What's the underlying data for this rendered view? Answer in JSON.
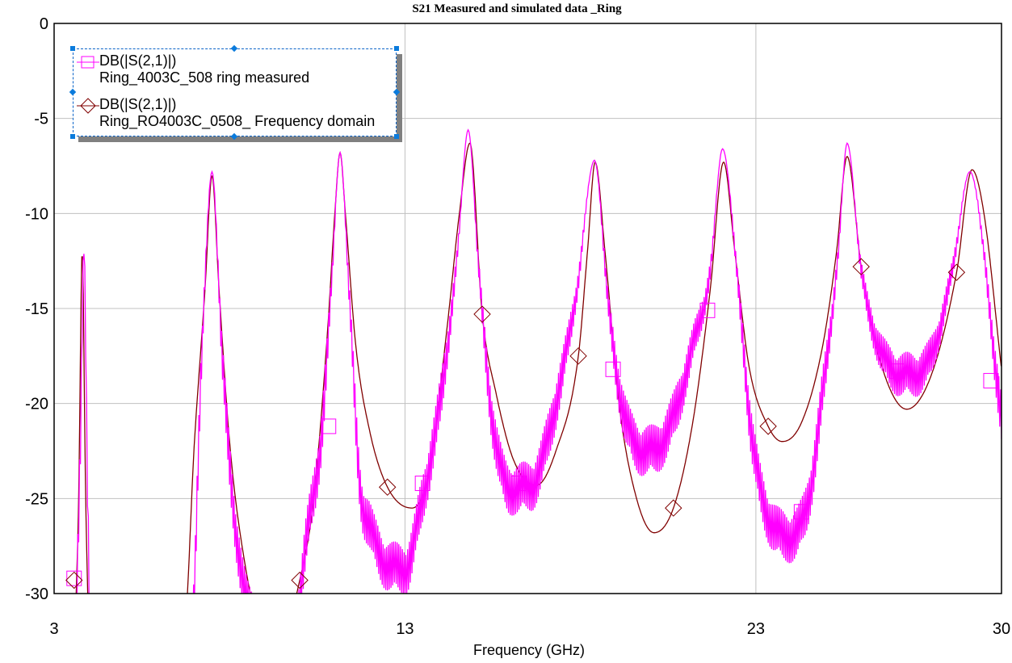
{
  "chart_data": {
    "type": "line",
    "title": "S21 Measured and simulated data _Ring",
    "xlabel": "Frequency (GHz)",
    "ylabel": "",
    "xlim": [
      3,
      30
    ],
    "ylim": [
      -30,
      0
    ],
    "xticks": [
      3,
      13,
      23,
      30
    ],
    "xtick_labels": [
      "3",
      "13",
      "23",
      "30"
    ],
    "yticks": [
      0,
      -5,
      -10,
      -15,
      -20,
      -25,
      -30
    ],
    "ytick_labels": [
      "0",
      "-5",
      "-10",
      "-15",
      "-20",
      "-25",
      "-30"
    ],
    "grid": true,
    "legend_position": "top-left",
    "series": [
      {
        "name": "DB(|S(2,1)|)",
        "source": "Ring_4003C_508 ring measured",
        "color": "#FF00FF",
        "marker": "square",
        "ripple_db": 1.4,
        "x": [
          3.6,
          3.75,
          3.85,
          3.95,
          4.05,
          6.9,
          7.2,
          7.5,
          7.8,
          8.2,
          8.6,
          9.8,
          10.2,
          10.6,
          10.9,
          11.15,
          11.4,
          11.7,
          12.0,
          12.5,
          13.0,
          13.5,
          14.0,
          14.5,
          14.8,
          15.1,
          15.5,
          16.0,
          16.6,
          17.3,
          17.9,
          18.4,
          18.8,
          19.3,
          20.0,
          20.6,
          21.2,
          21.7,
          22.05,
          22.5,
          22.9,
          23.5,
          24.0,
          24.5,
          25.0,
          25.35,
          25.6,
          26.0,
          26.5,
          27.3,
          28.0,
          28.6,
          29.1,
          29.5,
          29.8,
          30.0
        ],
        "y": [
          -34,
          -22,
          -11.7,
          -24,
          -33,
          -32,
          -18,
          -7.8,
          -18,
          -27,
          -31,
          -32,
          -27,
          -22,
          -14,
          -6.8,
          -14,
          -24,
          -26.5,
          -28.5,
          -28.7,
          -25,
          -20,
          -12,
          -5.6,
          -13,
          -21,
          -24.5,
          -24.3,
          -20,
          -14,
          -7.2,
          -15,
          -21,
          -22.5,
          -21,
          -17,
          -13,
          -6.6,
          -14,
          -22,
          -26.5,
          -27,
          -25,
          -18,
          -12,
          -6.3,
          -13,
          -17,
          -18.5,
          -17.5,
          -13,
          -7.8,
          -12,
          -18,
          -20.5
        ],
        "markers_x": [
          3.57,
          10.82,
          13.5,
          16.24,
          18.93,
          21.62,
          24.3,
          27.02,
          29.7
        ],
        "markers_y": [
          -29.2,
          -21.2,
          -24.2,
          -24.2,
          -18.2,
          -15.1,
          -25.7,
          -18.3,
          -18.8
        ]
      },
      {
        "name": "DB(|S(2,1)|)",
        "source": "Ring_RO4003C_0508_ Frequency domain",
        "color": "#800000",
        "marker": "diamond",
        "x": [
          3.55,
          3.7,
          3.8,
          3.9,
          4.05,
          6.7,
          7.0,
          7.3,
          7.5,
          7.7,
          8.0,
          8.4,
          8.8,
          9.7,
          10.0,
          10.4,
          10.8,
          11.0,
          11.15,
          11.3,
          11.6,
          12.0,
          12.5,
          13.2,
          13.7,
          14.2,
          14.55,
          14.85,
          15.2,
          15.6,
          16.1,
          16.75,
          17.3,
          17.94,
          18.2,
          18.42,
          18.7,
          19.1,
          19.6,
          20.1,
          20.65,
          21.2,
          21.7,
          22.08,
          22.4,
          22.8,
          23.35,
          23.75,
          24.3,
          24.9,
          25.3,
          25.6,
          26.0,
          26.5,
          27.3,
          28.0,
          28.72,
          29.16,
          29.5,
          30.0
        ],
        "y": [
          -34,
          -25,
          -12,
          -25,
          -34,
          -32,
          -22,
          -14,
          -8,
          -14,
          -22,
          -28,
          -31,
          -31,
          -29.3,
          -25,
          -16,
          -10,
          -6.8,
          -10,
          -17,
          -21.5,
          -24.4,
          -25.5,
          -23.5,
          -16,
          -10,
          -6.3,
          -15.3,
          -19.5,
          -23,
          -24.3,
          -22.5,
          -17.5,
          -12,
          -7.3,
          -12,
          -20,
          -25,
          -26.8,
          -25.5,
          -21,
          -14,
          -7.3,
          -12,
          -18,
          -21.2,
          -22,
          -21,
          -17,
          -12,
          -7,
          -12.8,
          -17.5,
          -20.3,
          -18.5,
          -13.1,
          -7.7,
          -10,
          -18.2
        ],
        "markers_x": [
          3.57,
          10.0,
          12.5,
          15.2,
          17.94,
          20.65,
          23.35,
          26.0,
          28.72
        ],
        "markers_y": [
          -29.3,
          -29.3,
          -24.4,
          -15.3,
          -17.5,
          -25.5,
          -21.2,
          -12.8,
          -13.1
        ]
      }
    ]
  }
}
